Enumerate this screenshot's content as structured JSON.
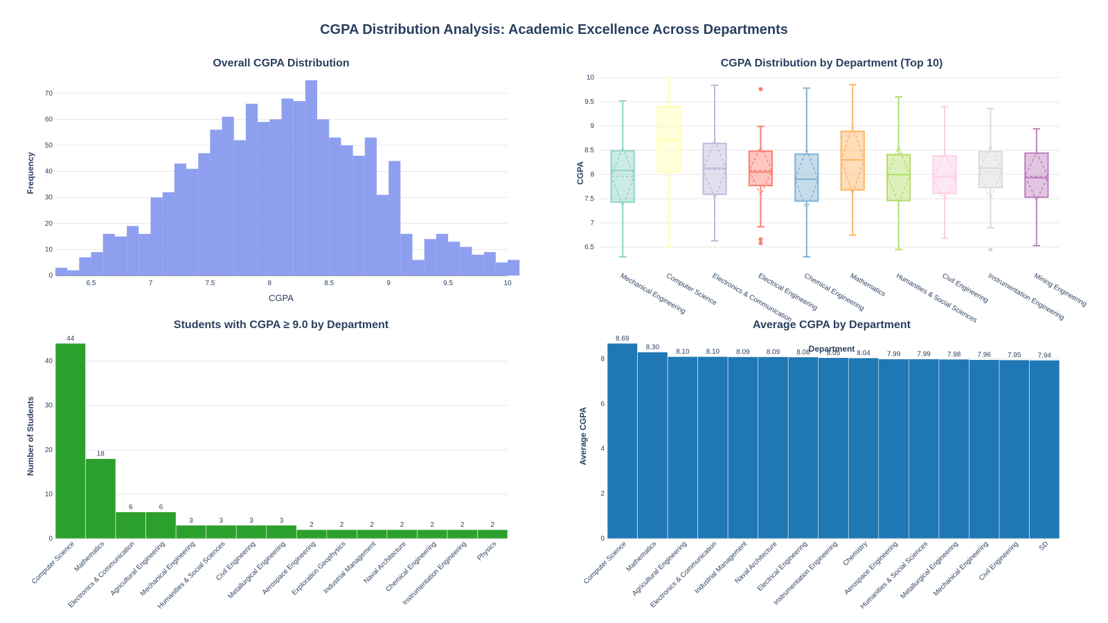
{
  "title": "CGPA Distribution Analysis: Academic Excellence Across Departments",
  "chart_data": [
    {
      "type": "bar",
      "subtype": "histogram",
      "title": "Overall CGPA Distribution",
      "xlabel": "CGPA",
      "ylabel": "Frequency",
      "color": "#8e9ff0",
      "bin_start": 6.2,
      "bin_width": 0.1,
      "values": [
        3,
        2,
        7,
        9,
        16,
        15,
        19,
        16,
        30,
        32,
        43,
        41,
        47,
        56,
        61,
        52,
        66,
        59,
        60,
        68,
        67,
        75,
        60,
        53,
        50,
        46,
        53,
        31,
        44,
        16,
        6,
        14,
        16,
        13,
        11,
        8,
        9,
        5,
        6
      ],
      "xlim": [
        6.2,
        10
      ],
      "ylim": [
        0,
        75
      ],
      "x_ticks": [
        6.5,
        7,
        7.5,
        8,
        8.5,
        9,
        9.5,
        10
      ],
      "x_tick_labels": [
        "6.5",
        "7",
        "7.5",
        "8",
        "8.5",
        "9",
        "9.5",
        "10"
      ],
      "y_ticks": [
        0,
        10,
        20,
        30,
        40,
        50,
        60,
        70
      ],
      "y_tick_labels": [
        "0",
        "10",
        "20",
        "30",
        "40",
        "50",
        "60",
        "70"
      ],
      "grid": true
    },
    {
      "type": "box",
      "title": "CGPA Distribution by Department (Top 10)",
      "xlabel": "",
      "ylabel": "CGPA",
      "ylim": [
        6.2,
        10
      ],
      "y_ticks": [
        6.5,
        7,
        7.5,
        8,
        8.5,
        9,
        9.5,
        10
      ],
      "y_tick_labels": [
        "6.5",
        "7",
        "7.5",
        "8",
        "8.5",
        "9",
        "9.5",
        "10"
      ],
      "grid": true,
      "boxes": [
        {
          "category": "Mechanical Engineering",
          "color": "#8dd3c7",
          "min": 6.3,
          "q1": 7.43,
          "median": 8.08,
          "q3": 8.49,
          "max": 9.52,
          "mean": 7.96,
          "sd": 0.6,
          "outliers": []
        },
        {
          "category": "Computer Science",
          "color": "#ffffb3",
          "min": 6.5,
          "q1": 8.05,
          "median": 8.72,
          "q3": 9.4,
          "max": 10.0,
          "mean": 8.69,
          "sd": 0.7,
          "outliers": []
        },
        {
          "category": "Electronics & Communication",
          "color": "#bebada",
          "min": 6.63,
          "q1": 7.59,
          "median": 8.13,
          "q3": 8.64,
          "max": 9.84,
          "mean": 8.1,
          "sd": 0.6,
          "outliers": []
        },
        {
          "category": "Electrical Engineering",
          "color": "#fb8072",
          "min": 6.92,
          "q1": 7.77,
          "median": 8.05,
          "q3": 8.48,
          "max": 8.99,
          "mean": 8.08,
          "sd": 0.5,
          "outliers": [
            9.76,
            6.66,
            6.58
          ]
        },
        {
          "category": "Chemical Engineering",
          "color": "#80b1d3",
          "min": 6.3,
          "q1": 7.45,
          "median": 7.9,
          "q3": 8.42,
          "max": 9.78,
          "mean": 7.9,
          "sd": 0.62,
          "outliers": []
        },
        {
          "category": "Mathematics",
          "color": "#fdb462",
          "min": 6.75,
          "q1": 7.68,
          "median": 8.3,
          "q3": 8.89,
          "max": 9.85,
          "mean": 8.3,
          "sd": 0.7,
          "outliers": []
        },
        {
          "category": "Humanities & Social Sciences",
          "color": "#b3de69",
          "min": 6.45,
          "q1": 7.46,
          "median": 8.0,
          "q3": 8.41,
          "max": 9.6,
          "mean": 7.99,
          "sd": 0.58,
          "outliers": []
        },
        {
          "category": "Civil Engineering",
          "color": "#fccde5",
          "min": 6.68,
          "q1": 7.61,
          "median": 7.95,
          "q3": 8.38,
          "max": 9.4,
          "mean": 7.95,
          "sd": 0.5,
          "outliers": []
        },
        {
          "category": "Instrumentation Engineering",
          "color": "#d9d9d9",
          "min": 6.9,
          "q1": 7.73,
          "median": 8.13,
          "q3": 8.47,
          "max": 9.36,
          "mean": 8.05,
          "sd": 0.55,
          "outliers": [
            6.45
          ]
        },
        {
          "category": "Mining Engineering",
          "color": "#bc80bd",
          "min": 6.53,
          "q1": 7.53,
          "median": 7.93,
          "q3": 8.44,
          "max": 8.94,
          "mean": 7.96,
          "sd": 0.5,
          "outliers": []
        }
      ]
    },
    {
      "type": "bar",
      "title": "Students with CGPA ≥ 9.0 by Department",
      "xlabel": "",
      "ylabel": "Number of Students",
      "color": "#2ca02c",
      "categories": [
        "Computer Science",
        "Mathematics",
        "Electronics & Communication",
        "Agricultural Engineering",
        "Mechanical Engineering",
        "Humanities & Social Sciences",
        "Civil Engineering",
        "Metallurgical Engineering",
        "Aerospace Engineering",
        "Exploration Geophysics",
        "Industrial Management",
        "Naval Architecture",
        "Chemical Engineering",
        "Instrumentation Engineering",
        "Physics"
      ],
      "values": [
        44,
        18,
        6,
        6,
        3,
        3,
        3,
        3,
        2,
        2,
        2,
        2,
        2,
        2,
        2
      ],
      "data_labels": [
        "44",
        "18",
        "6",
        "6",
        "3",
        "3",
        "3",
        "3",
        "2",
        "2",
        "2",
        "2",
        "2",
        "2",
        "2"
      ],
      "ylim": [
        0,
        44
      ],
      "y_ticks": [
        0,
        10,
        20,
        30,
        40
      ],
      "y_tick_labels": [
        "0",
        "10",
        "20",
        "30",
        "40"
      ],
      "grid": true
    },
    {
      "type": "bar",
      "title": "Average CGPA by Department",
      "xlabel": "Department",
      "ylabel": "Average CGPA",
      "color": "#1f77b4",
      "categories": [
        "Computer Science",
        "Mathematics",
        "Agricultural Engineering",
        "Electronics & Communication",
        "Industrial Management",
        "Naval Architecture",
        "Electrical Engineering",
        "Instrumentation Engineering",
        "Chemistry",
        "Aerospace Engineering",
        "Humanities & Social Sciences",
        "Metallurgical Engineering",
        "Mechanical Engineering",
        "Civil Engineering",
        "SD"
      ],
      "values": [
        8.69,
        8.3,
        8.1,
        8.1,
        8.09,
        8.09,
        8.08,
        8.05,
        8.04,
        7.99,
        7.99,
        7.98,
        7.96,
        7.95,
        7.94
      ],
      "data_labels": [
        "8.69",
        "8.30",
        "8.10",
        "8.10",
        "8.09",
        "8.09",
        "8.08",
        "8.05",
        "8.04",
        "7.99",
        "7.99",
        "7.98",
        "7.96",
        "7.95",
        "7.94"
      ],
      "ylim": [
        0,
        8.69
      ],
      "y_ticks": [
        0,
        2,
        4,
        6,
        8
      ],
      "y_tick_labels": [
        "0",
        "2",
        "4",
        "6",
        "8"
      ],
      "grid": true
    }
  ]
}
